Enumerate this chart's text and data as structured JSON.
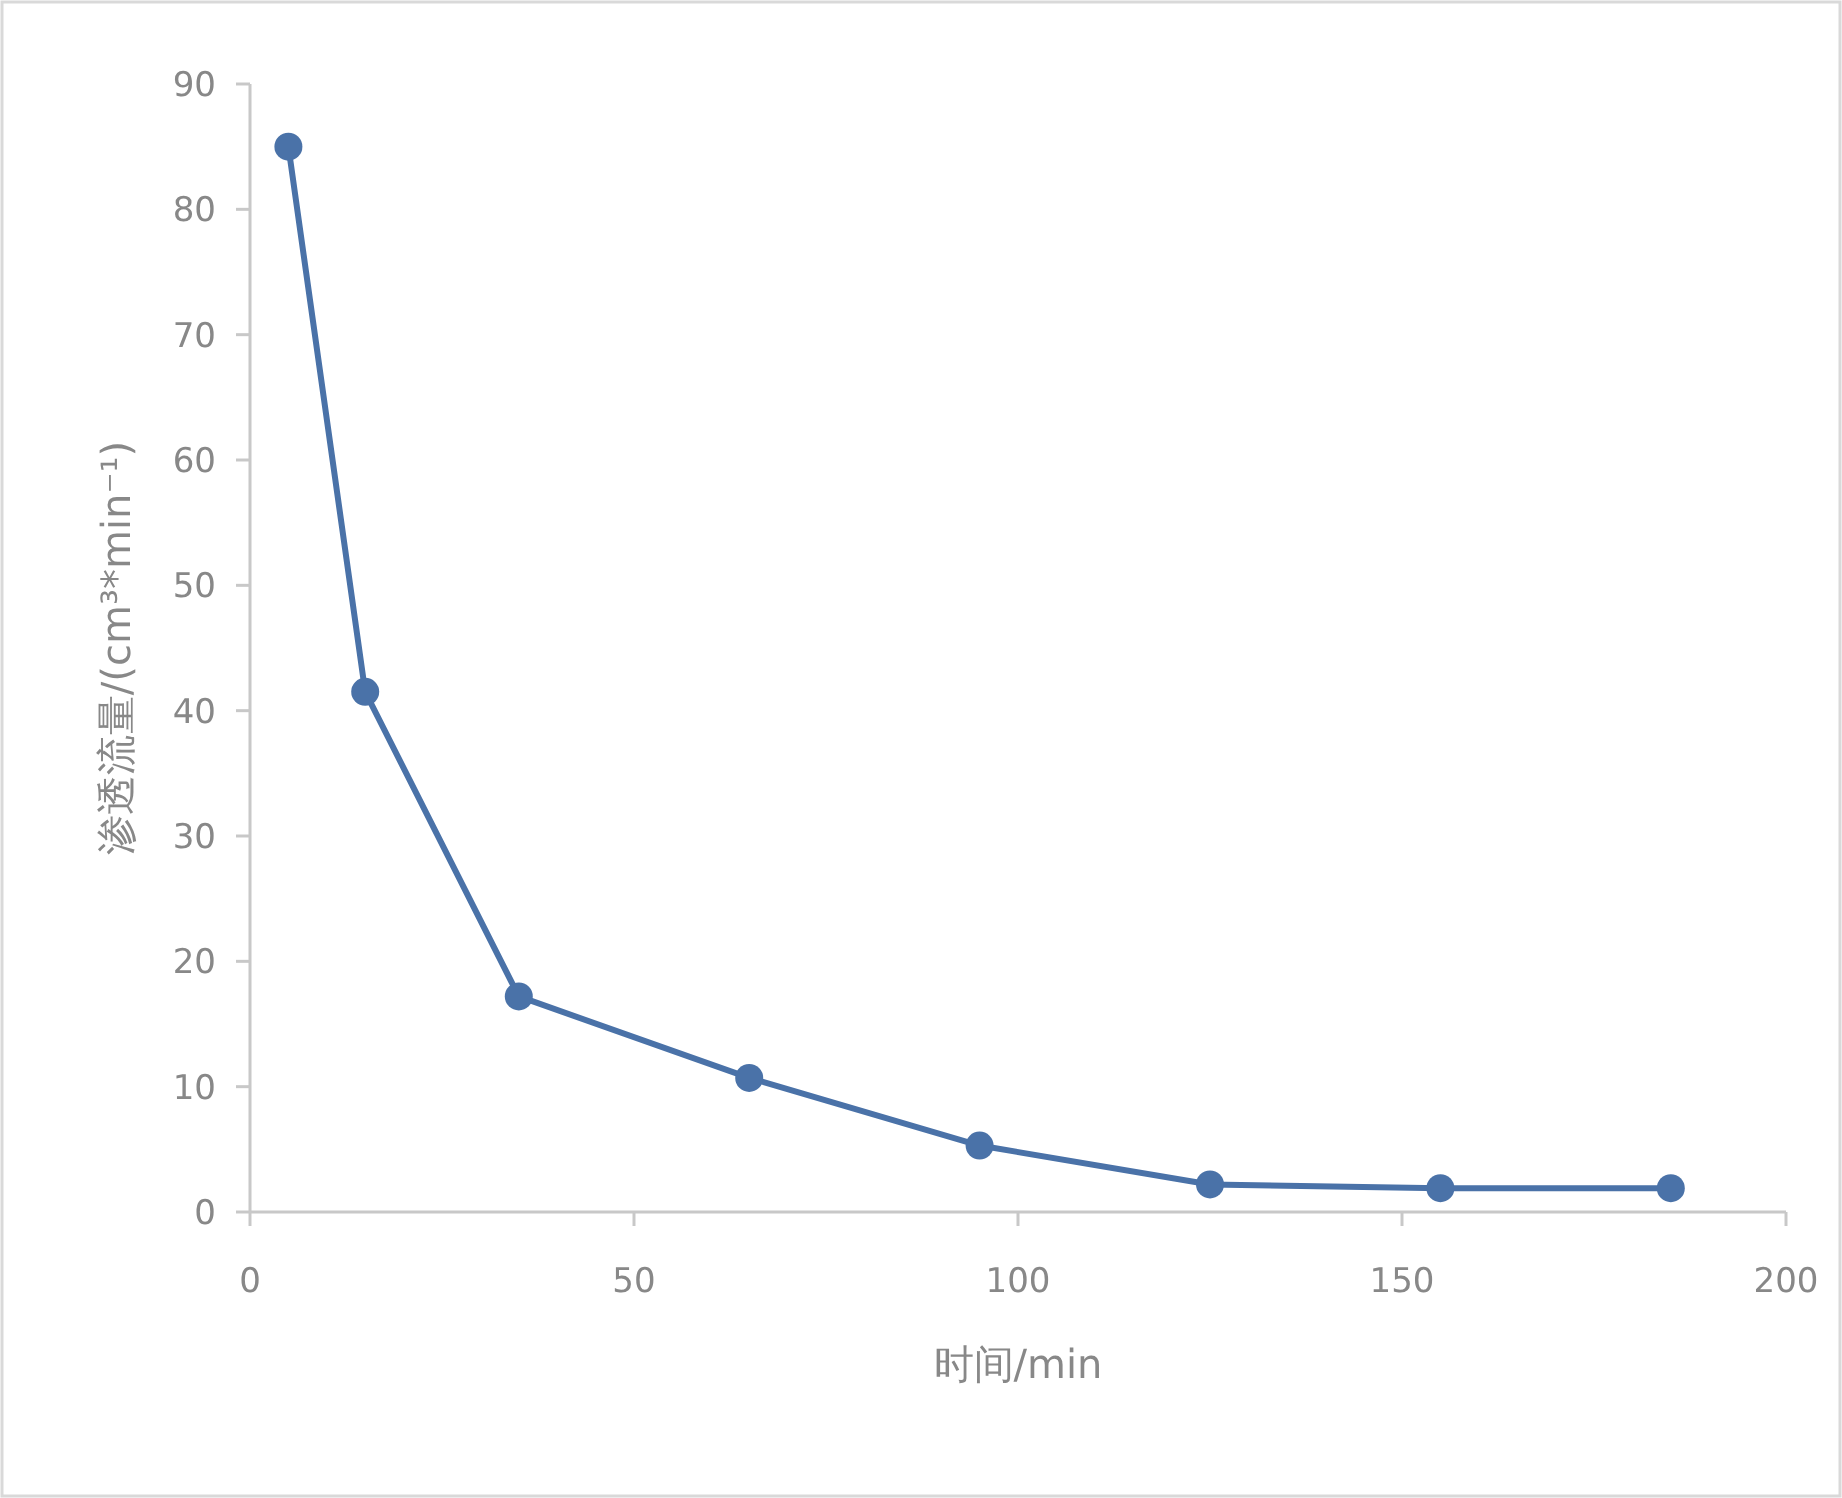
{
  "chart_data": {
    "type": "line",
    "xlabel": "时间/min",
    "ylabel": "渗透流量/(cm³*min⁻¹)",
    "x": [
      5,
      15,
      35,
      65,
      95,
      125,
      155,
      185
    ],
    "series": [
      {
        "color": "#4a72a8",
        "values": [
          85,
          41.5,
          17.2,
          10.7,
          5.3,
          2.2,
          1.9,
          1.9
        ]
      }
    ],
    "xlim": [
      0,
      200
    ],
    "xticks": [
      0,
      50,
      100,
      150,
      200
    ],
    "ylim": [
      0,
      90
    ],
    "yticks": [
      0,
      10,
      20,
      30,
      40,
      50,
      60,
      70,
      80,
      90
    ],
    "marker": "circle",
    "grid": false
  }
}
